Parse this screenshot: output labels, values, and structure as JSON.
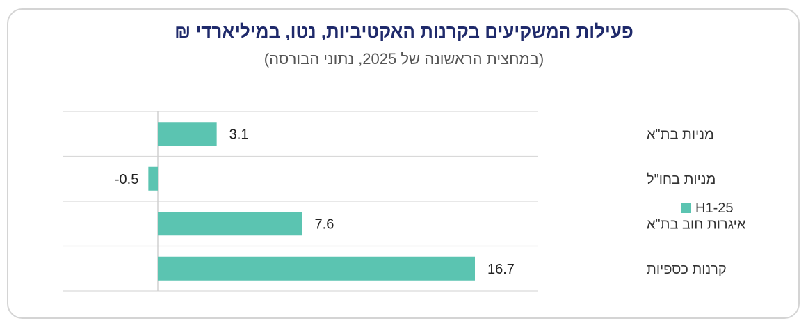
{
  "chart_data": {
    "type": "bar",
    "orientation": "horizontal",
    "title": "פעילות המשקיעים בקרנות האקטיביות, נטו, במיליארדי ₪",
    "subtitle": "(במחצית הראשונה של 2025, נתוני הבורסה)",
    "categories": [
      "מניות בת\"א",
      "מניות בחו\"ל",
      "איגרות חוב בת\"א",
      "קרנות כספיות"
    ],
    "series": [
      {
        "name": "H1-25",
        "values": [
          3.1,
          -0.5,
          7.6,
          16.7
        ],
        "color": "#5bc4b1"
      }
    ],
    "value_labels": [
      "3.1",
      "-0.5",
      "7.6",
      "16.7"
    ],
    "xlim": [
      -2.8,
      16.7
    ],
    "grid": "horizontal-row-separators",
    "legend_position": "right"
  }
}
